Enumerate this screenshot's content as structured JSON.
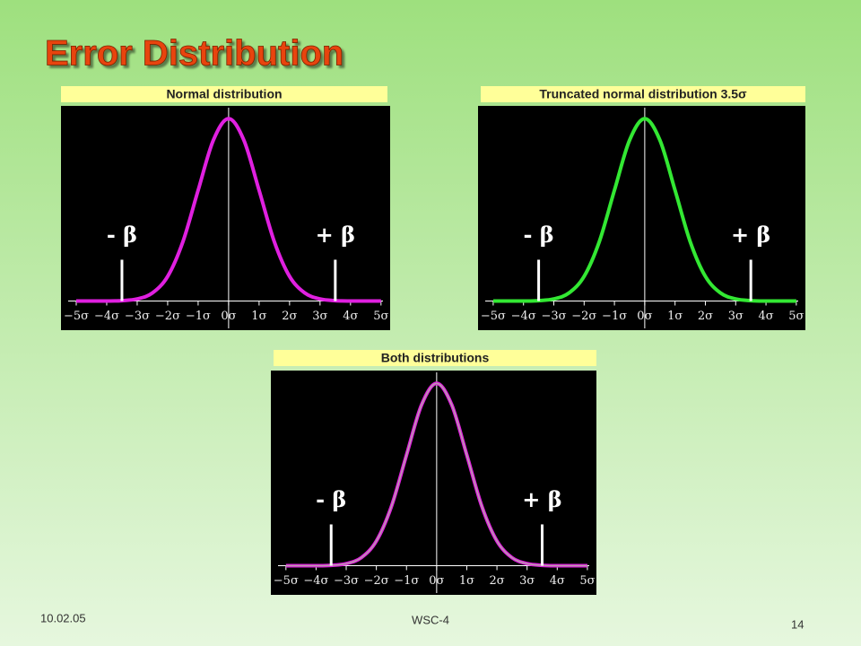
{
  "title": "Error Distribution",
  "footer": {
    "date": "10.02.05",
    "event": "WSC-4",
    "page": "14"
  },
  "chart_data": [
    {
      "type": "line",
      "title": "Normal distribution",
      "x": [
        -5,
        -4.5,
        -4,
        -3.5,
        -3,
        -2.5,
        -2,
        -1.5,
        -1,
        -0.5,
        0,
        0.5,
        1,
        1.5,
        2,
        2.5,
        3,
        3.5,
        4,
        4.5,
        5
      ],
      "series": [
        {
          "color": "#e020e0",
          "values": [
            0,
            0,
            0,
            0.002,
            0.011,
            0.044,
            0.135,
            0.325,
            0.607,
            0.882,
            1,
            0.882,
            0.607,
            0.325,
            0.135,
            0.044,
            0.011,
            0.002,
            0,
            0,
            0
          ]
        }
      ],
      "xlim": [
        -5.5,
        5.3
      ],
      "ylim": [
        -0.16,
        1.07
      ],
      "xticks": [
        {
          "value": -5,
          "label": "−5σ"
        },
        {
          "value": -4,
          "label": "−4σ"
        },
        {
          "value": -3,
          "label": "−3σ"
        },
        {
          "value": -2,
          "label": "−2σ"
        },
        {
          "value": -1,
          "label": "−1σ"
        },
        {
          "value": 0,
          "label": "0σ"
        },
        {
          "value": 1,
          "label": "1σ"
        },
        {
          "value": 2,
          "label": "2σ"
        },
        {
          "value": 3,
          "label": "3σ"
        },
        {
          "value": 4,
          "label": "4σ"
        },
        {
          "value": 5,
          "label": "5σ"
        }
      ],
      "annotations": [
        {
          "text": "- β",
          "x": -3.5
        },
        {
          "text": "+ β",
          "x": 3.5
        }
      ]
    },
    {
      "type": "line",
      "title": "Truncated normal distribution 3.5σ",
      "x": [
        -5,
        -4.5,
        -4,
        -3.5,
        -3,
        -2.5,
        -2,
        -1.5,
        -1,
        -0.5,
        0,
        0.5,
        1,
        1.5,
        2,
        2.5,
        3,
        3.5,
        4,
        4.5,
        5
      ],
      "series": [
        {
          "color": "#33e833",
          "values": [
            0,
            0,
            0,
            0.002,
            0.011,
            0.044,
            0.135,
            0.325,
            0.607,
            0.882,
            1,
            0.882,
            0.607,
            0.325,
            0.135,
            0.044,
            0.011,
            0.002,
            0,
            0,
            0
          ]
        }
      ],
      "xlim": [
        -5.5,
        5.3
      ],
      "ylim": [
        -0.16,
        1.07
      ],
      "xticks": [
        {
          "value": -5,
          "label": "−5σ"
        },
        {
          "value": -4,
          "label": "−4σ"
        },
        {
          "value": -3,
          "label": "−3σ"
        },
        {
          "value": -2,
          "label": "−2σ"
        },
        {
          "value": -1,
          "label": "−1σ"
        },
        {
          "value": 0,
          "label": "0σ"
        },
        {
          "value": 1,
          "label": "1σ"
        },
        {
          "value": 2,
          "label": "2σ"
        },
        {
          "value": 3,
          "label": "3σ"
        },
        {
          "value": 4,
          "label": "4σ"
        },
        {
          "value": 5,
          "label": "5σ"
        }
      ],
      "annotations": [
        {
          "text": "- β",
          "x": -3.5
        },
        {
          "text": "+ β",
          "x": 3.5
        }
      ]
    },
    {
      "type": "line",
      "title": "Both distributions",
      "x": [
        -5,
        -4.5,
        -4,
        -3.5,
        -3,
        -2.5,
        -2,
        -1.5,
        -1,
        -0.5,
        0,
        0.5,
        1,
        1.5,
        2,
        2.5,
        3,
        3.5,
        4,
        4.5,
        5
      ],
      "series": [
        {
          "color": "#e020e0",
          "values": [
            0,
            0,
            0,
            0.002,
            0.011,
            0.044,
            0.135,
            0.325,
            0.607,
            0.882,
            1,
            0.882,
            0.607,
            0.325,
            0.135,
            0.044,
            0.011,
            0.002,
            0,
            0,
            0
          ]
        },
        {
          "color": "#b8a0a8",
          "values": [
            0,
            0,
            0,
            0.002,
            0.011,
            0.044,
            0.135,
            0.325,
            0.607,
            0.882,
            1,
            0.882,
            0.607,
            0.325,
            0.135,
            0.044,
            0.011,
            0.002,
            0,
            0,
            0
          ]
        }
      ],
      "xlim": [
        -5.5,
        5.3
      ],
      "ylim": [
        -0.16,
        1.07
      ],
      "xticks": [
        {
          "value": -5,
          "label": "−5σ"
        },
        {
          "value": -4,
          "label": "−4σ"
        },
        {
          "value": -3,
          "label": "−3σ"
        },
        {
          "value": -2,
          "label": "−2σ"
        },
        {
          "value": -1,
          "label": "−1σ"
        },
        {
          "value": 0,
          "label": "0σ"
        },
        {
          "value": 1,
          "label": "1σ"
        },
        {
          "value": 2,
          "label": "2σ"
        },
        {
          "value": 3,
          "label": "3σ"
        },
        {
          "value": 4,
          "label": "4σ"
        },
        {
          "value": 5,
          "label": "5σ"
        }
      ],
      "annotations": [
        {
          "text": "- β",
          "x": -3.5
        },
        {
          "text": "+ β",
          "x": 3.5
        }
      ]
    }
  ]
}
